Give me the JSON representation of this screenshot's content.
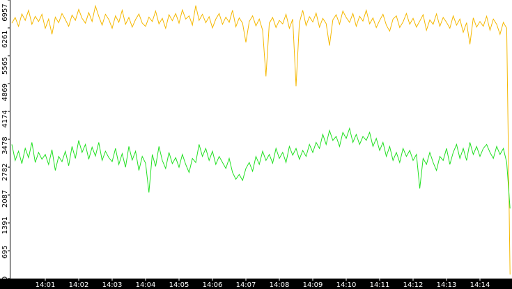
{
  "chart_data": {
    "type": "line",
    "categories": [
      null,
      null,
      null,
      null,
      null,
      null,
      null,
      null,
      null,
      null,
      "14:01",
      null,
      null,
      null,
      null,
      null,
      null,
      null,
      null,
      null,
      "14:02",
      null,
      null,
      null,
      null,
      null,
      null,
      null,
      null,
      null,
      "14:03",
      null,
      null,
      null,
      null,
      null,
      null,
      null,
      null,
      null,
      "14:04",
      null,
      null,
      null,
      null,
      null,
      null,
      null,
      null,
      null,
      "14:05",
      null,
      null,
      null,
      null,
      null,
      null,
      null,
      null,
      null,
      "14:06",
      null,
      null,
      null,
      null,
      null,
      null,
      null,
      null,
      null,
      "14:07",
      null,
      null,
      null,
      null,
      null,
      null,
      null,
      null,
      null,
      "14:08",
      null,
      null,
      null,
      null,
      null,
      null,
      null,
      null,
      null,
      "14:09",
      null,
      null,
      null,
      null,
      null,
      null,
      null,
      null,
      null,
      "14:10",
      null,
      null,
      null,
      null,
      null,
      null,
      null,
      null,
      null,
      "14:11",
      null,
      null,
      null,
      null,
      null,
      null,
      null,
      null,
      null,
      "14:12",
      null,
      null,
      null,
      null,
      null,
      null,
      null,
      null,
      null,
      "14:13",
      null,
      null,
      null,
      null,
      null,
      null,
      null,
      null,
      null,
      "14:14",
      null,
      null,
      null,
      null,
      null,
      null,
      null,
      null,
      null
    ],
    "series": [
      {
        "color": "#f5b800",
        "values": [
          6380,
          6520,
          6300,
          6610,
          6450,
          6700,
          6350,
          6550,
          6420,
          6600,
          6250,
          6480,
          6100,
          6530,
          6390,
          6620,
          6470,
          6300,
          6580,
          6450,
          6720,
          6500,
          6380,
          6640,
          6420,
          6810,
          6550,
          6330,
          6600,
          6470,
          6250,
          6560,
          6400,
          6700,
          6350,
          6520,
          6280,
          6470,
          6610,
          6380,
          6300,
          6530,
          6420,
          6680,
          6360,
          6500,
          6250,
          6590,
          6440,
          6620,
          6380,
          6710,
          6480,
          6560,
          6330,
          6820,
          6450,
          6600,
          6390,
          6540,
          6260,
          6480,
          6620,
          6350,
          6530,
          6400,
          6700,
          6290,
          6510,
          6380,
          5900,
          6420,
          6560,
          6310,
          6480,
          6200,
          5050,
          6380,
          6520,
          6270,
          6450,
          6360,
          6600,
          6250,
          6480,
          4800,
          6390,
          6700,
          6320,
          6540,
          6410,
          6630,
          6280,
          6500,
          6370,
          5820,
          6460,
          6590,
          6350,
          6680,
          6520,
          6400,
          6620,
          6300,
          6550,
          6430,
          6700,
          6360,
          6510,
          6270,
          6450,
          6600,
          6330,
          6180,
          6480,
          6560,
          6270,
          6410,
          6620,
          6350,
          6500,
          6280,
          6430,
          6590,
          6200,
          6460,
          6350,
          6610,
          6300,
          6520,
          6400,
          6250,
          6560,
          6330,
          6480,
          6150,
          6390,
          5850,
          6510,
          6280,
          6420,
          6300,
          6550,
          6200,
          6480,
          6350,
          6100,
          6400,
          6250,
          100
        ]
      },
      {
        "color": "#22e022",
        "values": [
          3350,
          2950,
          3180,
          2870,
          3250,
          3020,
          3400,
          2900,
          3150,
          2980,
          3100,
          2850,
          3220,
          2700,
          3050,
          2920,
          3180,
          2820,
          3300,
          3000,
          3450,
          3150,
          3350,
          2980,
          3280,
          3060,
          3400,
          2950,
          3180,
          3020,
          2920,
          3250,
          2850,
          3120,
          2780,
          3300,
          2960,
          3180,
          2700,
          3050,
          2880,
          2150,
          3100,
          2800,
          3300,
          2950,
          2750,
          3150,
          2870,
          3020,
          2780,
          3100,
          2850,
          2650,
          3000,
          2900,
          3350,
          3050,
          3250,
          2950,
          3180,
          2850,
          3050,
          2900,
          2750,
          3000,
          2650,
          2480,
          2600,
          2450,
          2750,
          2900,
          2680,
          3050,
          2850,
          3180,
          2950,
          3100,
          2880,
          3250,
          3000,
          3150,
          2900,
          3300,
          3080,
          3250,
          2980,
          3200,
          3050,
          3350,
          3150,
          3400,
          3250,
          3600,
          3350,
          3700,
          3450,
          3550,
          3300,
          3650,
          3500,
          3750,
          3400,
          3600,
          3350,
          3550,
          3450,
          3650,
          3300,
          3500,
          3200,
          3400,
          3050,
          3300,
          2950,
          3150,
          2900,
          3250,
          3050,
          3200,
          2950,
          3100,
          2250,
          3000,
          2850,
          3150,
          2900,
          2700,
          3050,
          2950,
          3250,
          2850,
          3150,
          3350,
          3000,
          3250,
          2950,
          3400,
          3100,
          3300,
          3050,
          3250,
          3350,
          3150,
          3000,
          3300,
          3100,
          3250,
          2900,
          1750
        ]
      }
    ],
    "ylim": [
      0,
      6957
    ],
    "yticks": [
      0,
      695,
      1391,
      2087,
      2782,
      3478,
      4174,
      4869,
      5565,
      6261,
      6957
    ]
  }
}
